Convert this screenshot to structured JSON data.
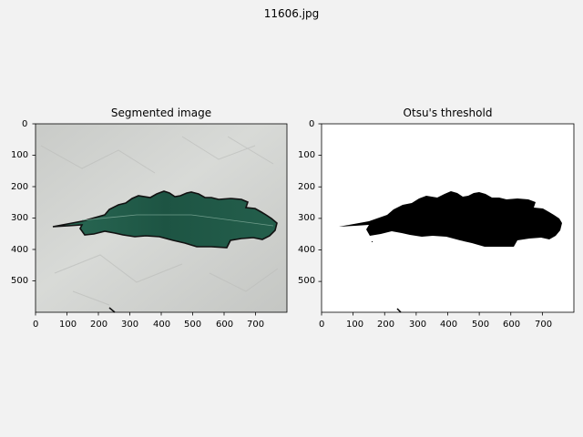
{
  "figure": {
    "title": "11606.jpg"
  },
  "panels": [
    {
      "title": "Segmented image",
      "x_ticks": [
        "0",
        "100",
        "200",
        "300",
        "400",
        "500",
        "600",
        "700"
      ],
      "y_ticks": [
        "0",
        "100",
        "200",
        "300",
        "400",
        "500"
      ]
    },
    {
      "title": "Otsu's threshold",
      "x_ticks": [
        "0",
        "100",
        "200",
        "300",
        "400",
        "500",
        "600",
        "700"
      ],
      "y_ticks": [
        "0",
        "100",
        "200",
        "300",
        "400",
        "500"
      ]
    }
  ],
  "colors": {
    "background": "#f2f2f2",
    "paper": "#d3d5d2",
    "leaf": "#1f5a47",
    "contour": "#111111",
    "mask_fg": "#000000",
    "mask_bg": "#ffffff"
  }
}
